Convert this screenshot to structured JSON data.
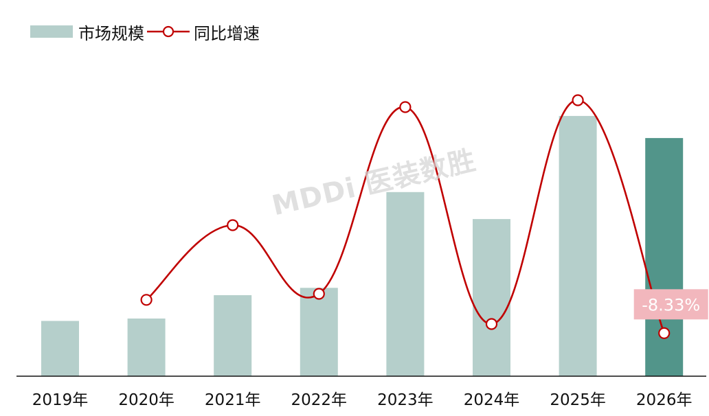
{
  "chart_data": {
    "type": "bar",
    "categories": [
      "2019年",
      "2020年",
      "2021年",
      "2022年",
      "2023年",
      "2024年",
      "2025年",
      "2026年"
    ],
    "series": [
      {
        "name": "市场规模",
        "type": "bar",
        "values": [
          22.5,
          23.5,
          33,
          36,
          75,
          64,
          106,
          97
        ],
        "colors": [
          "#b5cfcb",
          "#b5cfcb",
          "#b5cfcb",
          "#b5cfcb",
          "#b5cfcb",
          "#b5cfcb",
          "#b5cfcb",
          "#52958a"
        ]
      },
      {
        "name": "同比增速",
        "type": "line",
        "smooth": true,
        "color": "#c00000",
        "values": [
          null,
          3.8,
          31.0,
          6.0,
          74.0,
          -5.0,
          76.5,
          -8.33
        ]
      }
    ],
    "y_ranges": {
      "bar": [
        0,
        118
      ],
      "line": [
        -20,
        100
      ]
    },
    "data_labels": [
      {
        "category": "2026年",
        "series": "同比增速",
        "text": "-8.33%",
        "background": "#f2b7bd",
        "color": "#ffffff"
      }
    ],
    "legend_position": "top-left",
    "grid": false
  },
  "watermark": "MDDi 医装数胜"
}
